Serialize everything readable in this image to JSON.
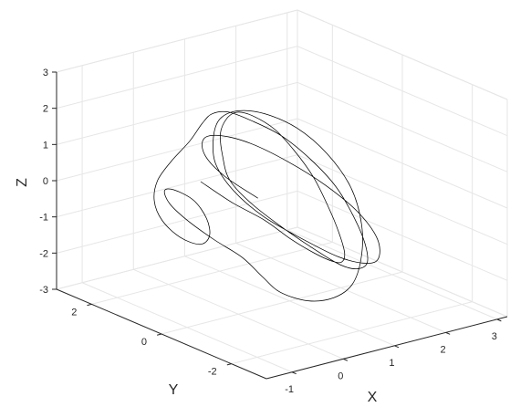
{
  "chart_data": {
    "type": "line",
    "projection": "3d",
    "title": "",
    "xlabel": "X",
    "ylabel": "Y",
    "zlabel": "Z",
    "xlim": [
      -1.5,
      3.2
    ],
    "ylim": [
      -3.0,
      3.0
    ],
    "zlim": [
      -3,
      3
    ],
    "xticks": [
      "-1",
      "0",
      "1",
      "2",
      "3"
    ],
    "yticks": [
      "-2",
      "0",
      "2"
    ],
    "zticks": [
      "-3",
      "-2",
      "-1",
      "0",
      "1",
      "2",
      "3"
    ],
    "grid": true,
    "line_color": "#000000",
    "series": [
      {
        "description": "chaotic attractor trajectory",
        "x": [
          -0.6,
          -0.4,
          -0.1,
          0.2,
          0.6,
          1.0,
          1.4,
          1.8,
          2.1,
          2.3,
          2.35,
          2.25,
          2.0,
          1.6,
          1.2,
          0.8,
          0.4,
          0.1,
          -0.1,
          0.0,
          0.3,
          0.7,
          1.1,
          1.5,
          1.9,
          2.2,
          2.4,
          2.45,
          2.3,
          2.0,
          1.55,
          1.1,
          0.65,
          0.25,
          -0.2,
          -0.7,
          -1.1,
          -1.3,
          -1.35,
          -1.2,
          -0.95,
          -0.7,
          -0.55,
          -0.6,
          -0.85,
          -1.1,
          -1.2,
          -1.05,
          -0.75,
          -0.4,
          -0.2,
          0.0,
          0.4,
          0.9,
          1.4,
          1.85,
          2.2,
          2.4,
          2.35,
          2.1,
          1.7,
          1.25,
          0.8,
          0.4,
          0.1,
          0.05,
          0.3,
          0.75,
          1.2,
          1.65,
          2.05,
          2.3,
          2.3,
          2.05,
          1.65,
          1.2,
          0.75,
          0.35,
          0.1,
          0.15,
          0.45
        ],
        "y": [
          0.2,
          -0.4,
          -0.9,
          -1.2,
          -1.3,
          -1.2,
          -0.9,
          -0.4,
          0.2,
          0.8,
          1.3,
          1.7,
          1.9,
          1.95,
          1.8,
          1.5,
          1.1,
          0.6,
          0.1,
          -0.4,
          -0.9,
          -1.2,
          -1.3,
          -1.2,
          -0.9,
          -0.4,
          0.2,
          0.8,
          1.3,
          1.7,
          1.9,
          1.9,
          1.7,
          1.4,
          1.1,
          0.9,
          0.7,
          0.5,
          0.2,
          -0.1,
          -0.3,
          -0.2,
          0.1,
          0.4,
          0.6,
          0.5,
          0.2,
          -0.1,
          -0.4,
          -0.7,
          -1.0,
          -1.2,
          -1.4,
          -1.4,
          -1.2,
          -0.8,
          -0.3,
          0.3,
          0.9,
          1.4,
          1.75,
          1.85,
          1.7,
          1.3,
          0.8,
          0.2,
          -0.3,
          -0.8,
          -1.1,
          -1.2,
          -1.0,
          -0.6,
          -0.05,
          0.5,
          1.0,
          1.4,
          1.6,
          1.5,
          1.1,
          0.6,
          0.1
        ],
        "z": [
          0.8,
          0.4,
          0.0,
          -0.5,
          -1.0,
          -1.4,
          -1.7,
          -1.8,
          -1.6,
          -1.2,
          -0.6,
          0.0,
          0.6,
          1.1,
          1.4,
          1.5,
          1.4,
          1.1,
          0.7,
          0.2,
          -0.4,
          -1.0,
          -1.5,
          -1.8,
          -1.9,
          -1.7,
          -1.3,
          -0.7,
          -0.1,
          0.5,
          1.0,
          1.4,
          1.6,
          1.6,
          1.4,
          1.1,
          0.8,
          0.4,
          0.0,
          -0.4,
          -0.6,
          -0.5,
          -0.2,
          0.2,
          0.5,
          0.6,
          0.4,
          0.0,
          -0.5,
          -1.0,
          -1.5,
          -1.9,
          -2.2,
          -2.3,
          -2.2,
          -1.8,
          -1.2,
          -0.5,
          0.2,
          0.8,
          1.2,
          1.4,
          1.4,
          1.2,
          0.8,
          0.3,
          -0.3,
          -0.9,
          -1.4,
          -1.7,
          -1.8,
          -1.5,
          -1.0,
          -0.4,
          0.2,
          0.7,
          1.0,
          1.1,
          0.9,
          0.5,
          0.0
        ]
      }
    ]
  }
}
